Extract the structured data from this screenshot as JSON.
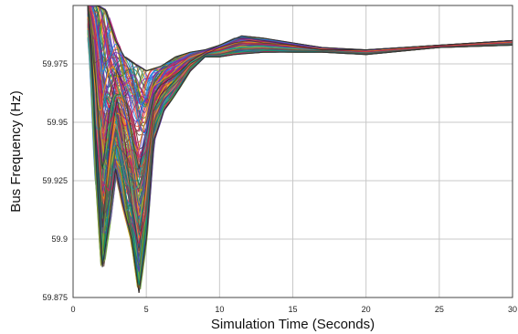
{
  "chart_data": {
    "type": "line",
    "xlabel": "Simulation Time (Seconds)",
    "ylabel": "Bus Frequency (Hz)",
    "xlim": [
      0,
      30
    ],
    "ylim": [
      59.875,
      60.0
    ],
    "x_ticks": [
      0,
      5,
      10,
      15,
      20,
      25,
      30
    ],
    "x_tick_labels": [
      "0",
      "5",
      "10",
      "15",
      "20",
      "25",
      "30"
    ],
    "y_ticks": [
      59.875,
      59.9,
      59.925,
      59.95,
      59.975
    ],
    "y_tick_labels": [
      "59.875",
      "59.9",
      "59.925",
      "59.95",
      "59.975"
    ],
    "grid": true,
    "legend": "none",
    "series_count_estimate": 200,
    "envelope": {
      "upper": [
        [
          1.0,
          60.0
        ],
        [
          1.6,
          60.0
        ],
        [
          2.2,
          59.998
        ],
        [
          2.9,
          59.985
        ],
        [
          3.5,
          59.978
        ],
        [
          4.2,
          59.975
        ],
        [
          5.0,
          59.972
        ],
        [
          6.0,
          59.974
        ],
        [
          7.0,
          59.978
        ],
        [
          8.0,
          59.98
        ],
        [
          9.0,
          59.981
        ],
        [
          10.0,
          59.983
        ],
        [
          11.5,
          59.987
        ],
        [
          13.0,
          59.986
        ],
        [
          15.0,
          59.984
        ],
        [
          17.0,
          59.982
        ],
        [
          20.0,
          59.981
        ],
        [
          25.0,
          59.983
        ],
        [
          30.0,
          59.985
        ]
      ],
      "lower": [
        [
          1.0,
          60.0
        ],
        [
          1.3,
          59.975
        ],
        [
          1.6,
          59.93
        ],
        [
          2.0,
          59.888
        ],
        [
          2.4,
          59.905
        ],
        [
          2.9,
          59.93
        ],
        [
          3.4,
          59.915
        ],
        [
          4.0,
          59.9
        ],
        [
          4.5,
          59.877
        ],
        [
          5.0,
          59.9
        ],
        [
          5.5,
          59.942
        ],
        [
          6.2,
          59.955
        ],
        [
          7.0,
          59.962
        ],
        [
          8.0,
          59.972
        ],
        [
          9.0,
          59.978
        ],
        [
          10.0,
          59.978
        ],
        [
          11.0,
          59.979
        ],
        [
          13.0,
          59.98
        ],
        [
          15.0,
          59.98
        ],
        [
          17.0,
          59.98
        ],
        [
          20.0,
          59.979
        ],
        [
          25.0,
          59.982
        ],
        [
          30.0,
          59.983
        ]
      ]
    },
    "representative_series": [
      {
        "x": [
          1.0,
          1.5,
          2.0,
          2.5,
          3.0,
          3.5,
          4.0,
          4.5,
          5.0,
          5.5,
          6.0,
          7.0,
          8.0,
          9.0,
          10.0,
          11.0,
          12.0,
          13.0,
          15.0,
          17.0,
          20.0,
          25.0,
          30.0
        ],
        "y": [
          60.0,
          59.95,
          59.905,
          59.94,
          59.96,
          59.945,
          59.915,
          59.895,
          59.925,
          59.955,
          59.962,
          59.968,
          59.975,
          59.979,
          59.982,
          59.984,
          59.985,
          59.984,
          59.983,
          59.981,
          59.981,
          59.983,
          59.985
        ]
      },
      {
        "x": [
          1.0,
          1.5,
          2.0,
          2.5,
          3.0,
          3.5,
          4.0,
          4.5,
          5.0,
          5.5,
          6.0,
          7.0,
          8.0,
          9.0,
          10.0,
          11.0,
          12.0,
          13.0,
          15.0,
          17.0,
          20.0,
          25.0,
          30.0
        ],
        "y": [
          60.0,
          59.97,
          59.93,
          59.955,
          59.972,
          59.965,
          59.945,
          59.93,
          59.945,
          59.962,
          59.966,
          59.97,
          59.976,
          59.98,
          59.983,
          59.986,
          59.986,
          59.985,
          59.983,
          59.981,
          59.981,
          59.983,
          59.985
        ]
      }
    ],
    "colors": [
      "#e04a3a",
      "#2e7d32",
      "#1e88e5",
      "#8e24aa",
      "#f4a000",
      "#00897b",
      "#6d4c41",
      "#c2185b",
      "#7cb342",
      "#3949ab",
      "#ff7043",
      "#455a64",
      "#d81b60",
      "#26a69a",
      "#9e9d24",
      "#5e35b1"
    ]
  }
}
